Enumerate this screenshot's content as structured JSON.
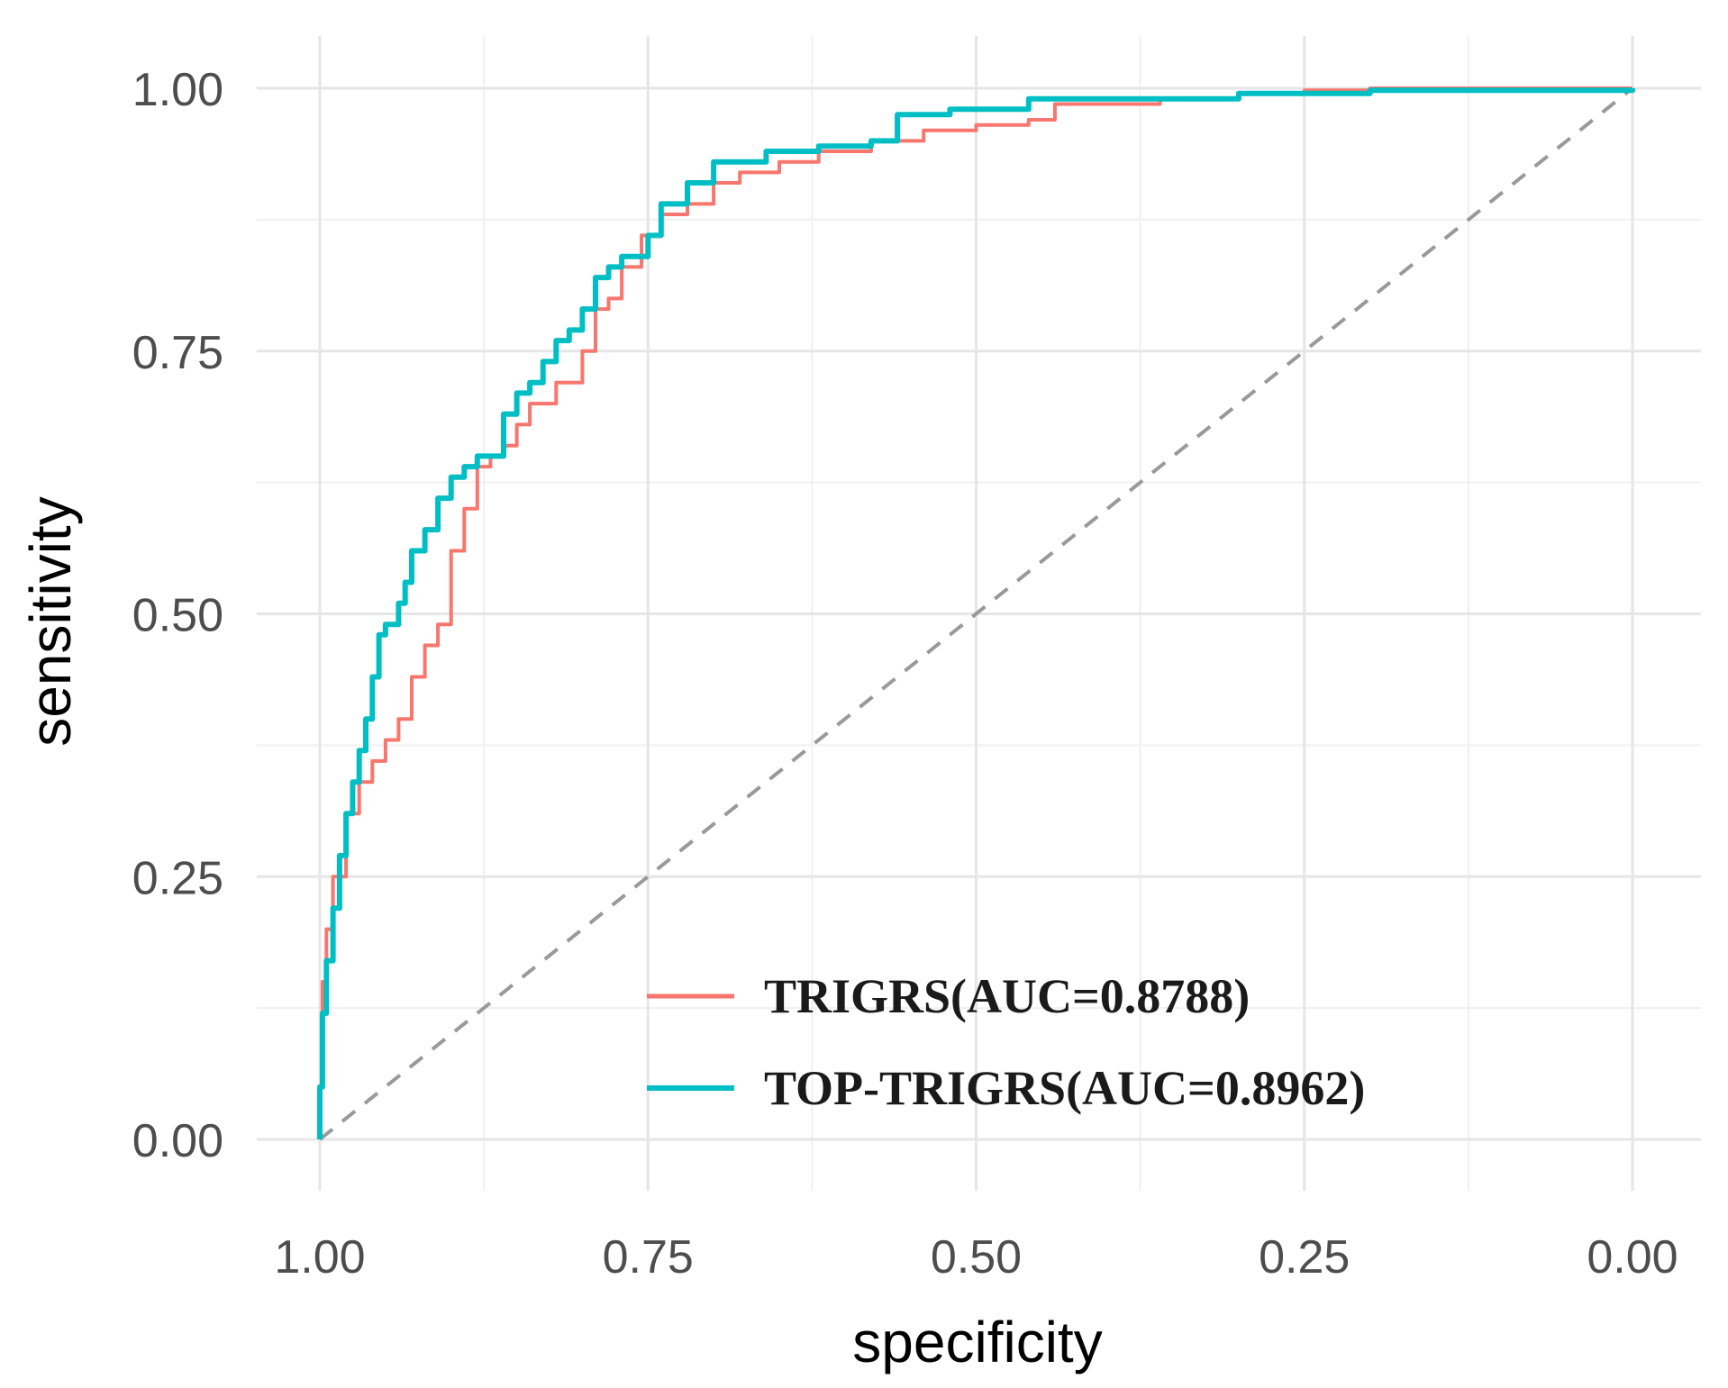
{
  "chart_data": {
    "type": "line",
    "title": "",
    "xlabel": "specificity",
    "ylabel": "sensitivity",
    "x_reversed": true,
    "xlim": [
      1.0,
      0.0
    ],
    "ylim": [
      0.0,
      1.0
    ],
    "x_ticks": [
      "1.00",
      "0.75",
      "0.50",
      "0.25",
      "0.00"
    ],
    "y_ticks": [
      "0.00",
      "0.25",
      "0.50",
      "0.75",
      "1.00"
    ],
    "grid": true,
    "legend_position": "bottom-right",
    "colors": {
      "TRIGRS": "#F8766D",
      "TOP-TRIGRS": "#00BFC4",
      "reference": "#999999"
    },
    "reference_line": {
      "style": "dashed",
      "from": [
        1.0,
        0.0
      ],
      "to": [
        0.0,
        1.0
      ]
    },
    "series": [
      {
        "name": "TRIGRS(AUC=0.8788)",
        "points": [
          [
            1.0,
            0.0
          ],
          [
            1.0,
            0.05
          ],
          [
            0.998,
            0.15
          ],
          [
            0.995,
            0.2
          ],
          [
            0.99,
            0.25
          ],
          [
            0.98,
            0.31
          ],
          [
            0.97,
            0.34
          ],
          [
            0.96,
            0.36
          ],
          [
            0.95,
            0.38
          ],
          [
            0.94,
            0.4
          ],
          [
            0.93,
            0.44
          ],
          [
            0.92,
            0.47
          ],
          [
            0.91,
            0.49
          ],
          [
            0.9,
            0.56
          ],
          [
            0.89,
            0.6
          ],
          [
            0.88,
            0.64
          ],
          [
            0.87,
            0.65
          ],
          [
            0.86,
            0.66
          ],
          [
            0.85,
            0.68
          ],
          [
            0.84,
            0.7
          ],
          [
            0.82,
            0.72
          ],
          [
            0.8,
            0.75
          ],
          [
            0.79,
            0.79
          ],
          [
            0.78,
            0.8
          ],
          [
            0.77,
            0.83
          ],
          [
            0.755,
            0.86
          ],
          [
            0.74,
            0.88
          ],
          [
            0.72,
            0.89
          ],
          [
            0.7,
            0.91
          ],
          [
            0.68,
            0.92
          ],
          [
            0.65,
            0.93
          ],
          [
            0.62,
            0.94
          ],
          [
            0.58,
            0.95
          ],
          [
            0.54,
            0.96
          ],
          [
            0.5,
            0.965
          ],
          [
            0.46,
            0.97
          ],
          [
            0.44,
            0.985
          ],
          [
            0.36,
            0.99
          ],
          [
            0.3,
            0.995
          ],
          [
            0.25,
            0.998
          ],
          [
            0.2,
            1.0
          ],
          [
            0.0,
            1.0
          ]
        ]
      },
      {
        "name": "TOP-TRIGRS(AUC=0.8962)",
        "points": [
          [
            1.0,
            0.0
          ],
          [
            1.0,
            0.05
          ],
          [
            0.998,
            0.12
          ],
          [
            0.995,
            0.17
          ],
          [
            0.99,
            0.22
          ],
          [
            0.985,
            0.27
          ],
          [
            0.98,
            0.31
          ],
          [
            0.975,
            0.34
          ],
          [
            0.97,
            0.37
          ],
          [
            0.965,
            0.4
          ],
          [
            0.96,
            0.44
          ],
          [
            0.955,
            0.48
          ],
          [
            0.95,
            0.49
          ],
          [
            0.94,
            0.51
          ],
          [
            0.935,
            0.53
          ],
          [
            0.93,
            0.56
          ],
          [
            0.92,
            0.58
          ],
          [
            0.91,
            0.61
          ],
          [
            0.9,
            0.63
          ],
          [
            0.89,
            0.64
          ],
          [
            0.88,
            0.65
          ],
          [
            0.87,
            0.65
          ],
          [
            0.86,
            0.69
          ],
          [
            0.85,
            0.71
          ],
          [
            0.84,
            0.72
          ],
          [
            0.83,
            0.74
          ],
          [
            0.82,
            0.76
          ],
          [
            0.81,
            0.77
          ],
          [
            0.8,
            0.79
          ],
          [
            0.79,
            0.82
          ],
          [
            0.78,
            0.83
          ],
          [
            0.77,
            0.84
          ],
          [
            0.75,
            0.86
          ],
          [
            0.74,
            0.89
          ],
          [
            0.72,
            0.91
          ],
          [
            0.7,
            0.93
          ],
          [
            0.66,
            0.94
          ],
          [
            0.62,
            0.945
          ],
          [
            0.58,
            0.95
          ],
          [
            0.56,
            0.975
          ],
          [
            0.52,
            0.98
          ],
          [
            0.46,
            0.99
          ],
          [
            0.4,
            0.99
          ],
          [
            0.3,
            0.995
          ],
          [
            0.2,
            0.998
          ],
          [
            0.0,
            1.0
          ]
        ]
      }
    ]
  }
}
